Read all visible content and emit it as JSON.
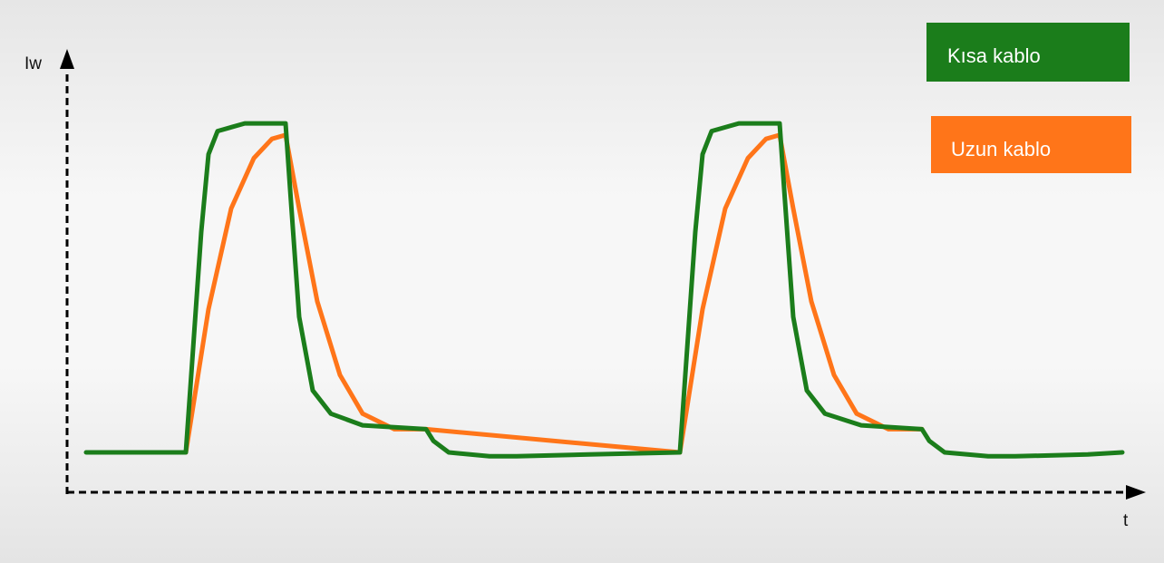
{
  "chart_data": {
    "type": "line",
    "title": "",
    "xlabel": "t",
    "ylabel": "Iw",
    "xlim": [
      0,
      1284
    ],
    "ylim": [
      0,
      100
    ],
    "grid": false,
    "legend_position": "top-right",
    "series": [
      {
        "name": "Kısa kablo",
        "color": "#1b7d1b",
        "points": [
          [
            95,
            11
          ],
          [
            205,
            11
          ],
          [
            222,
            68
          ],
          [
            230,
            88
          ],
          [
            240,
            94
          ],
          [
            270,
            96
          ],
          [
            315,
            96
          ],
          [
            320,
            79
          ],
          [
            330,
            46
          ],
          [
            345,
            27
          ],
          [
            365,
            21
          ],
          [
            400,
            18
          ],
          [
            470,
            17
          ],
          [
            478,
            14
          ],
          [
            495,
            11
          ],
          [
            540,
            10
          ],
          [
            570,
            10
          ],
          [
            650,
            10.5
          ],
          [
            750,
            11
          ],
          [
            767,
            68
          ],
          [
            775,
            88
          ],
          [
            785,
            94
          ],
          [
            815,
            96
          ],
          [
            860,
            96
          ],
          [
            865,
            79
          ],
          [
            875,
            46
          ],
          [
            890,
            27
          ],
          [
            910,
            21
          ],
          [
            950,
            18
          ],
          [
            1017,
            17
          ],
          [
            1025,
            14
          ],
          [
            1042,
            11
          ],
          [
            1090,
            10
          ],
          [
            1120,
            10
          ],
          [
            1200,
            10.5
          ],
          [
            1238,
            11
          ]
        ]
      },
      {
        "name": "Uzun kablo",
        "color": "#ff7519",
        "points": [
          [
            205,
            11
          ],
          [
            230,
            48
          ],
          [
            255,
            74
          ],
          [
            280,
            87
          ],
          [
            300,
            92
          ],
          [
            315,
            93
          ],
          [
            330,
            74
          ],
          [
            350,
            50
          ],
          [
            375,
            31
          ],
          [
            400,
            21
          ],
          [
            435,
            17
          ],
          [
            470,
            17
          ],
          [
            750,
            11
          ],
          [
            775,
            48
          ],
          [
            800,
            74
          ],
          [
            825,
            87
          ],
          [
            845,
            92
          ],
          [
            860,
            93
          ],
          [
            875,
            74
          ],
          [
            895,
            50
          ],
          [
            920,
            31
          ],
          [
            945,
            21
          ],
          [
            980,
            17
          ],
          [
            1017,
            17
          ]
        ]
      }
    ]
  },
  "legend": [
    {
      "label": "Kısa kablo",
      "color": "#1b7d1b"
    },
    {
      "label": "Uzun kablo",
      "color": "#ff7519"
    }
  ]
}
